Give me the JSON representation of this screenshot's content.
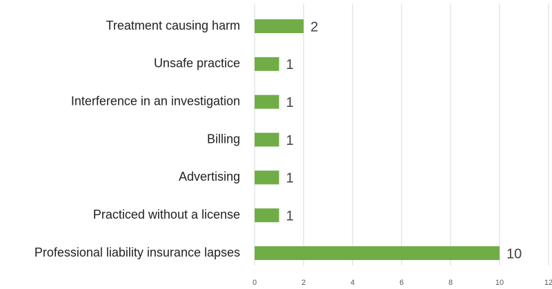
{
  "chart_data": {
    "type": "hbar",
    "categories": [
      "Treatment causing harm",
      "Unsafe practice",
      "Interference in an investigation",
      "Billing",
      "Advertising",
      "Practiced without a license",
      "Professional liability insurance lapses"
    ],
    "values": [
      2,
      1,
      1,
      1,
      1,
      1,
      10
    ],
    "color": "#70ad47",
    "xlim": [
      0,
      12
    ],
    "xticks": [
      0,
      2,
      4,
      6,
      8,
      10,
      12
    ],
    "grid": true
  }
}
